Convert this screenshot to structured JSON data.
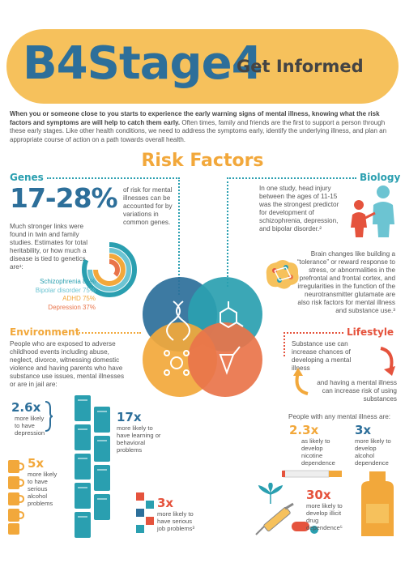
{
  "header": {
    "logo": "B4Stage4",
    "tagline": "Get Informed"
  },
  "intro": {
    "bold": "When you or someone close to you starts to experience the early warning signs of mental illness, knowing what the risk factors and symptoms are will help to catch them early.",
    "rest": " Often times, family and friends are the first to support a person through these early stages. Like other health conditions, we need to address the symptoms early, identify the underlying illness, and plan an appropriate course of action on a path towards overall health."
  },
  "title": "Risk Factors",
  "genes": {
    "heading": "Genes",
    "range": "17-28%",
    "range_desc": "of risk for mental illnesses can be accounted for by variations in common genes.",
    "body": "Much stronger links were found in twin and family studies. Estimates for total heritability, or how much a disease is tied to genetics, are¹:",
    "items": [
      {
        "label": "Schizophrenia 81%",
        "value": 81,
        "color": "#2a9fb0"
      },
      {
        "label": "Bipolar disorder 75%",
        "value": 75,
        "color": "#6cc4d2"
      },
      {
        "label": "ADHD 75%",
        "value": 75,
        "color": "#f2a83b"
      },
      {
        "label": "Depression 37%",
        "value": 37,
        "color": "#e9744a"
      }
    ]
  },
  "biology": {
    "heading": "Biology",
    "p1": "In one study, head injury between the ages of 11-15 was the strongest predictor for development of schizophrenia, depression, and bipolar disorder.²",
    "p2": "Brain changes like building a “tolerance” or reward response to stress, or abnormalities in the prefrontal and frontal cortex, and irregularities in the function of the neurotransmitter glutamate are also risk factors for mental illness and substance use.³"
  },
  "environment": {
    "heading": "Environment",
    "body": "People who are exposed to adverse childhood events including abuse, neglect, divorce, witnessing domestic violence and having parents who have substance use issues, mental illnesses or are in jail are:",
    "stats": [
      {
        "num": "2.6x",
        "text": "more likely to have depression"
      },
      {
        "num": "17x",
        "text": "more likely to have learning or behavioral problems"
      },
      {
        "num": "5x",
        "text": "more likely to have serious alcohol problems"
      },
      {
        "num": "3x",
        "text": "more likely to have serious job problems³"
      }
    ]
  },
  "lifestyle": {
    "heading": "Lifestyle",
    "p1": "Substance use can increase chances of developing a mental illness",
    "p2": "and having a mental illness can increase risk of using substances",
    "lead": "People with any mental illness are:",
    "stats": [
      {
        "num": "2.3x",
        "text": "as likely to develop nicotine dependence"
      },
      {
        "num": "3x",
        "text": "more likely to develop alcohol dependence"
      },
      {
        "num": "30x",
        "text": "more likely to develop illicit drug dependence⁵"
      }
    ]
  },
  "colors": {
    "teal": "#2a9fb0",
    "blue": "#2d6f9a",
    "orange": "#f2a83b",
    "red": "#e5533d",
    "banner": "#f6c15c"
  }
}
